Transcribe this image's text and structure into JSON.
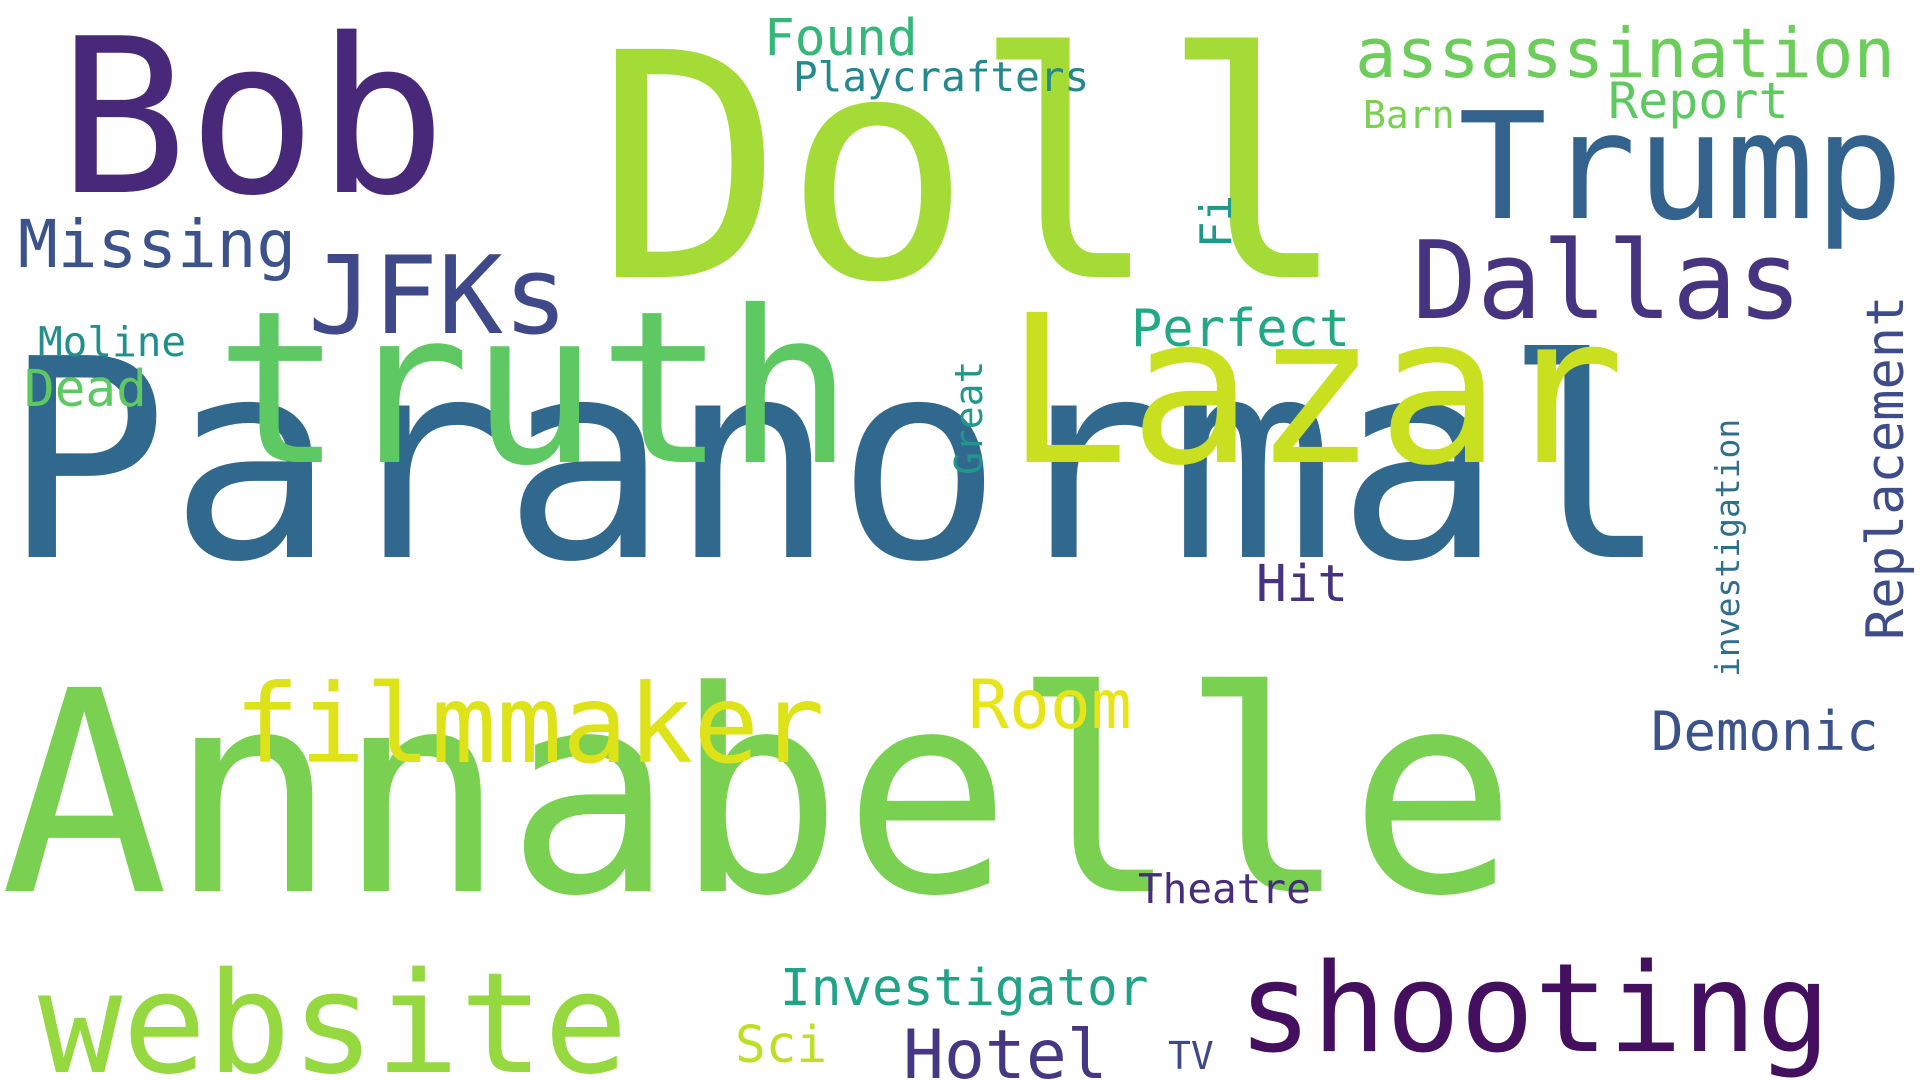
{
  "words": [
    {
      "key": "paranormal",
      "text": "Paranormal",
      "color": "#31688e"
    },
    {
      "key": "annabelle",
      "text": "Annabelle",
      "color": "#7ad151"
    },
    {
      "key": "doll",
      "text": "Doll",
      "color": "#a5db36"
    },
    {
      "key": "bob",
      "text": "Bob",
      "color": "#482878"
    },
    {
      "key": "lazar",
      "text": "Lazar",
      "color": "#c8e020"
    },
    {
      "key": "truth",
      "text": "truth",
      "color": "#5ec962"
    },
    {
      "key": "trump",
      "text": "Trump",
      "color": "#33638d"
    },
    {
      "key": "website",
      "text": "website",
      "color": "#95d840"
    },
    {
      "key": "shooting",
      "text": "shooting",
      "color": "#440f5f"
    },
    {
      "key": "filmmaker",
      "text": "filmmaker",
      "color": "#dde318"
    },
    {
      "key": "dallas",
      "text": "Dallas",
      "color": "#463480"
    },
    {
      "key": "jfks",
      "text": "JFKs",
      "color": "#3f4889"
    },
    {
      "key": "assassination",
      "text": "assassination",
      "color": "#6ccd5a"
    },
    {
      "key": "missing",
      "text": "Missing",
      "color": "#3b528b"
    },
    {
      "key": "hotel",
      "text": "Hotel",
      "color": "#453781"
    },
    {
      "key": "room",
      "text": "Room",
      "color": "#e7e419"
    },
    {
      "key": "perfect",
      "text": "Perfect",
      "color": "#22a884"
    },
    {
      "key": "replacement",
      "text": "Replacement",
      "color": "#3e4c8a"
    },
    {
      "key": "demonic",
      "text": "Demonic",
      "color": "#3b528b"
    },
    {
      "key": "investigator",
      "text": "Investigator",
      "color": "#20a386"
    },
    {
      "key": "report",
      "text": "Report",
      "color": "#5ec962"
    },
    {
      "key": "found",
      "text": "Found",
      "color": "#35b779"
    },
    {
      "key": "hit",
      "text": "Hit",
      "color": "#46327e"
    },
    {
      "key": "dead",
      "text": "Dead",
      "color": "#5ec962"
    },
    {
      "key": "moline",
      "text": "Moline",
      "color": "#21908d"
    },
    {
      "key": "playcrafters",
      "text": "Playcrafters",
      "color": "#23898e"
    },
    {
      "key": "investigation",
      "text": "investigation",
      "color": "#2e6f8e"
    },
    {
      "key": "great",
      "text": "Great",
      "color": "#1f988b"
    },
    {
      "key": "theatre",
      "text": "Theatre",
      "color": "#472d7b"
    },
    {
      "key": "sci",
      "text": "Sci",
      "color": "#bddf26"
    },
    {
      "key": "tv",
      "text": "TV",
      "color": "#3e4989"
    },
    {
      "key": "fi",
      "text": "Fi",
      "color": "#1f988b"
    },
    {
      "key": "barn",
      "text": "Barn",
      "color": "#7ad151"
    }
  ]
}
